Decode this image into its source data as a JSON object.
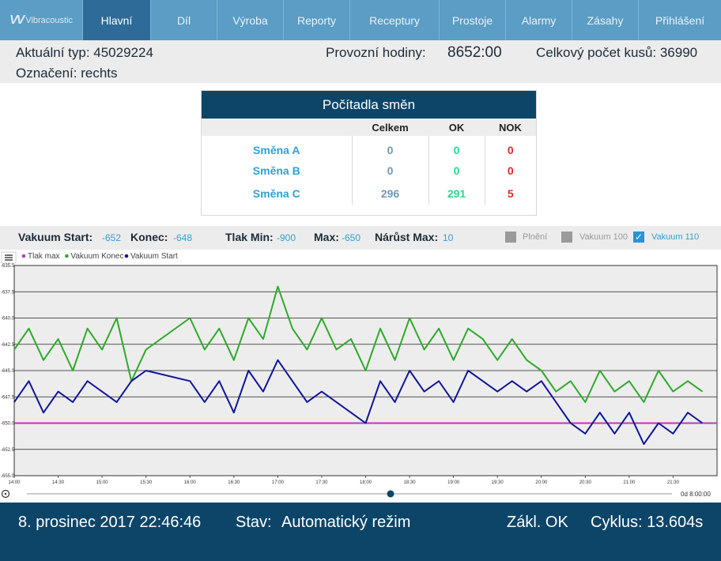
{
  "nav": {
    "logo": "Vibracoustic",
    "items": [
      {
        "label": "Hlavní",
        "active": true
      },
      {
        "label": "Díl"
      },
      {
        "label": "Výroba"
      },
      {
        "label": "Reporty"
      },
      {
        "label": "Receptury"
      },
      {
        "label": "Prostoje"
      },
      {
        "label": "Alarmy"
      },
      {
        "label": "Zásahy"
      },
      {
        "label": "Přihlášení"
      }
    ]
  },
  "info": {
    "type_label": "Aktuální typ: 45029224",
    "designation": "Označení: rechts",
    "hours_label": "Provozní hodiny:",
    "hours_value": "8652:00",
    "total_label": "Celkový počet kusů: 36990"
  },
  "counters": {
    "title": "Počítadla směn",
    "headers": [
      "Celkem",
      "OK",
      "NOK"
    ],
    "rows": [
      {
        "shift": "Směna A",
        "total": "0",
        "ok": "0",
        "nok": "0"
      },
      {
        "shift": "Směna B",
        "total": "0",
        "ok": "0",
        "nok": "0"
      },
      {
        "shift": "Směna C",
        "total": "296",
        "ok": "291",
        "nok": "5"
      }
    ]
  },
  "stats": {
    "vac_start_label": "Vakuum Start:",
    "vac_start": "-652",
    "end_label": "Konec:",
    "end": "-648",
    "p_min_label": "Tlak Min:",
    "p_min": "-900",
    "max_label": "Max:",
    "max": "-650",
    "rise_label": "Nárůst Max:",
    "rise": "10",
    "checkboxes": [
      {
        "label": "Plnění",
        "checked": false
      },
      {
        "label": "Vakuum 100",
        "checked": false
      },
      {
        "label": "Vakuum 110",
        "checked": true
      }
    ]
  },
  "chart_data": {
    "type": "line",
    "legend": [
      "Tlak max",
      "Vakuum Konec",
      "Vakuum Start"
    ],
    "colors": {
      "tlak_max": "#b83bb5",
      "konec": "#2eaa2a",
      "start": "#10159a"
    },
    "x_ticks": [
      "14:00",
      "14:30",
      "15:00",
      "15:30",
      "16:00",
      "16:30",
      "17:00",
      "17:30",
      "18:00",
      "18:30",
      "19:00",
      "19:30",
      "20:00",
      "20:30",
      "21:00",
      "21:30"
    ],
    "y_ticks": [
      "-635.0",
      "-637.5",
      "-640.0",
      "-642.5",
      "-645.0",
      "-647.5",
      "-650.0",
      "-652.5",
      "-655.0"
    ],
    "ylim": [
      -655,
      -635
    ],
    "tlak_max": -650,
    "range_label": "0d 8:00:00",
    "series": [
      {
        "name": "Vakuum Konec",
        "x": [
          "14:00",
          "14:10",
          "14:20",
          "14:30",
          "14:40",
          "14:50",
          "15:00",
          "15:10",
          "15:20",
          "15:30",
          "16:00",
          "16:10",
          "16:20",
          "16:30",
          "16:40",
          "16:50",
          "17:00",
          "17:10",
          "17:20",
          "17:30",
          "17:40",
          "17:50",
          "18:00",
          "18:10",
          "18:20",
          "18:30",
          "18:40",
          "18:50",
          "19:00",
          "19:10",
          "19:20",
          "19:30",
          "19:40",
          "19:50",
          "20:00",
          "20:10",
          "20:20",
          "20:30",
          "20:40",
          "20:50",
          "21:00",
          "21:10",
          "21:20",
          "21:30",
          "21:40",
          "21:50"
        ],
        "values": [
          -643,
          -641,
          -644,
          -642,
          -645,
          -641,
          -643,
          -640,
          -646,
          -643,
          -640,
          -643,
          -641,
          -644,
          -640,
          -642,
          -637,
          -641,
          -643,
          -640,
          -643,
          -642,
          -645,
          -641,
          -644,
          -640,
          -643,
          -641,
          -644,
          -641,
          -642,
          -644,
          -642,
          -644,
          -645,
          -647,
          -646,
          -648,
          -645,
          -647,
          -646,
          -648,
          -645,
          -647,
          -646,
          -647
        ]
      },
      {
        "name": "Vakuum Start",
        "x": [
          "14:00",
          "14:10",
          "14:20",
          "14:30",
          "14:40",
          "14:50",
          "15:00",
          "15:10",
          "15:20",
          "15:30",
          "16:00",
          "16:10",
          "16:20",
          "16:30",
          "16:40",
          "16:50",
          "17:00",
          "17:10",
          "17:20",
          "17:30",
          "17:40",
          "17:50",
          "18:00",
          "18:10",
          "18:20",
          "18:30",
          "18:40",
          "18:50",
          "19:00",
          "19:10",
          "19:20",
          "19:30",
          "19:40",
          "19:50",
          "20:00",
          "20:10",
          "20:20",
          "20:30",
          "20:40",
          "20:50",
          "21:00",
          "21:10",
          "21:20",
          "21:30",
          "21:40",
          "21:50"
        ],
        "values": [
          -648,
          -646,
          -649,
          -647,
          -648,
          -646,
          -647,
          -648,
          -646,
          -645,
          -646,
          -648,
          -646,
          -649,
          -645,
          -647,
          -644,
          -646,
          -648,
          -647,
          -648,
          -649,
          -650,
          -646,
          -648,
          -645,
          -647,
          -646,
          -648,
          -645,
          -646,
          -647,
          -646,
          -647,
          -646,
          -648,
          -650,
          -651,
          -649,
          -651,
          -649,
          -652,
          -650,
          -651,
          -649,
          -650
        ]
      }
    ]
  },
  "footer": {
    "datetime": "8. prosinec 2017 22:46:46",
    "state_label": "Stav:",
    "state": "Automatický režim",
    "basic": "Zákl. OK",
    "cycle": "Cyklus: 13.604s"
  }
}
